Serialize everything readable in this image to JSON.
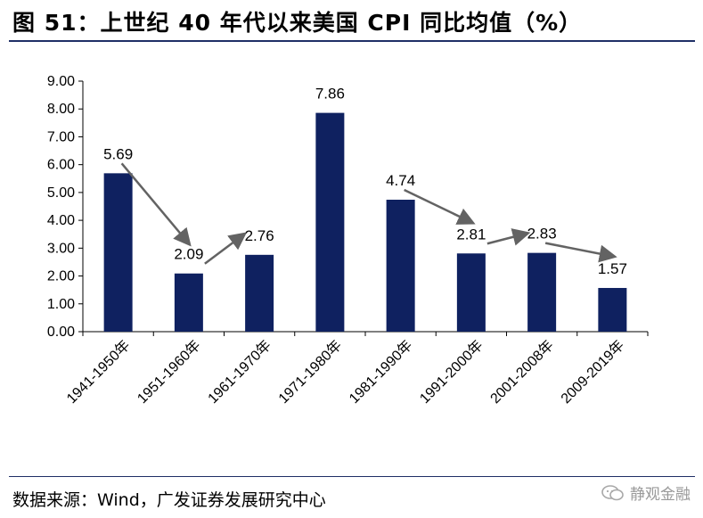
{
  "figure": {
    "title": "图 51：上世纪 40 年代以来美国 CPI 同比均值（%）",
    "source": "数据来源：Wind，广发证券发展研究中心",
    "watermark": "静观金融"
  },
  "colors": {
    "bar": "#0f2160",
    "arrow": "#636363",
    "rule": "#1f2f66"
  },
  "chart_data": {
    "type": "bar",
    "title": "",
    "xlabel": "",
    "ylabel": "",
    "categories": [
      "1941-1950年",
      "1951-1960年",
      "1961-1970年",
      "1971-1980年",
      "1981-1990年",
      "1991-2000年",
      "2001-2008年",
      "2009-2019年"
    ],
    "values": [
      5.69,
      2.09,
      2.76,
      7.86,
      4.74,
      2.81,
      2.83,
      1.57
    ],
    "data_labels": [
      "5.69",
      "2.09",
      "2.76",
      "7.86",
      "4.74",
      "2.81",
      "2.83",
      "1.57"
    ],
    "ylim": [
      0,
      9
    ],
    "yticks": [
      "0.00",
      "1.00",
      "2.00",
      "3.00",
      "4.00",
      "5.00",
      "6.00",
      "7.00",
      "8.00",
      "9.00"
    ],
    "grid": false,
    "legend": "none",
    "annotations": [
      {
        "type": "arrow",
        "from_category": "1941-1950年",
        "to_category": "1951-1960年",
        "direction": "down"
      },
      {
        "type": "arrow",
        "from_category": "1951-1960年",
        "to_category": "1961-1970年",
        "direction": "up"
      },
      {
        "type": "arrow",
        "from_category": "1981-1990年",
        "to_category": "1991-2000年",
        "direction": "down"
      },
      {
        "type": "arrow",
        "from_category": "1991-2000年",
        "to_category": "2001-2008年",
        "direction": "up"
      },
      {
        "type": "arrow",
        "from_category": "2001-2008年",
        "to_category": "2009-2019年",
        "direction": "down"
      }
    ]
  }
}
